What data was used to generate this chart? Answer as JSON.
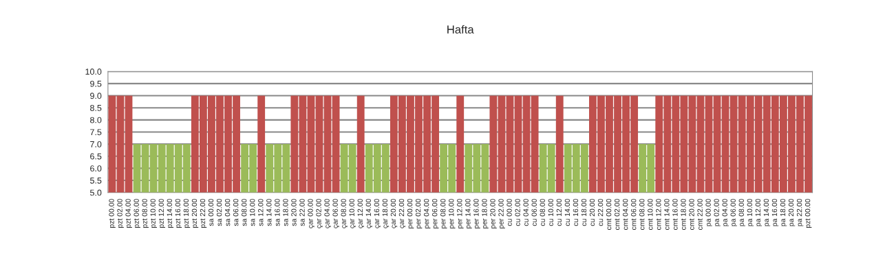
{
  "chart_data": {
    "type": "bar",
    "title": "Hafta",
    "categories": [
      "pzt 00.00",
      "pzt 02.00",
      "pzt 04.00",
      "pzt 06.00",
      "pzt 08.00",
      "pzt 10.00",
      "pzt 12.00",
      "pzt 14.00",
      "pzt 16.00",
      "pzt 18.00",
      "pzt 20.00",
      "pzt 22.00",
      "sa 00.00",
      "sa 02.00",
      "sa 04.00",
      "sa 06.00",
      "sa 08.00",
      "sa 10.00",
      "sa 12.00",
      "sa 14.00",
      "sa 16.00",
      "sa 18.00",
      "sa 20.00",
      "sa 22.00",
      "çar 00.00",
      "çar 02.00",
      "çar 04.00",
      "çar 06.00",
      "çar 08.00",
      "çar 10.00",
      "çar 12.00",
      "çar 14.00",
      "çar 16.00",
      "çar 18.00",
      "çar 20.00",
      "çar 22.00",
      "per 00.00",
      "per 02.00",
      "per 04.00",
      "per 06.00",
      "per 08.00",
      "per 10.00",
      "per 12.00",
      "per 14.00",
      "per 16.00",
      "per 18.00",
      "per 20.00",
      "per 22.00",
      "cu 00.00",
      "cu 02.00",
      "cu 04.00",
      "cu 06.00",
      "cu 08.00",
      "cu 10.00",
      "cu 12.00",
      "cu 14.00",
      "cu 16.00",
      "cu 18.00",
      "cu 20.00",
      "cu 22.00",
      "cmt 00.00",
      "cmt 02.00",
      "cmt 04.00",
      "cmt 06.00",
      "cmt 08.00",
      "cmt 10.00",
      "cmt 12.00",
      "cmt 14.00",
      "cmt 16.00",
      "cmt 18.00",
      "cmt 20.00",
      "cmt 22.00",
      "pa 00.00",
      "pa 02.00",
      "pa 04.00",
      "pa 06.00",
      "pa 08.00",
      "pa 10.00",
      "pa 12.00",
      "pa 14.00",
      "pa 16.00",
      "pa 18.00",
      "pa 20.00",
      "pa 22.00",
      "pzt 00.00"
    ],
    "series": [
      {
        "color": "#c0504d",
        "values": [
          9,
          9,
          9,
          null,
          null,
          null,
          null,
          null,
          null,
          null,
          9,
          9,
          9,
          9,
          9,
          9,
          null,
          null,
          9,
          null,
          null,
          null,
          9,
          9,
          9,
          9,
          9,
          9,
          null,
          null,
          9,
          null,
          null,
          null,
          9,
          9,
          9,
          9,
          9,
          9,
          null,
          null,
          9,
          null,
          null,
          null,
          9,
          9,
          9,
          9,
          9,
          9,
          null,
          null,
          9,
          null,
          null,
          null,
          9,
          9,
          9,
          9,
          9,
          9,
          null,
          null,
          9,
          9,
          9,
          9,
          9,
          9,
          9,
          9,
          9,
          9,
          9,
          9,
          9,
          9,
          9,
          9,
          9,
          9,
          9
        ]
      },
      {
        "color": "#9bbb59",
        "values": [
          null,
          null,
          null,
          7,
          7,
          7,
          7,
          7,
          7,
          7,
          null,
          null,
          null,
          null,
          null,
          null,
          7,
          7,
          null,
          7,
          7,
          7,
          null,
          null,
          null,
          null,
          null,
          null,
          7,
          7,
          null,
          7,
          7,
          7,
          null,
          null,
          null,
          null,
          null,
          null,
          7,
          7,
          null,
          7,
          7,
          7,
          null,
          null,
          null,
          null,
          null,
          null,
          7,
          7,
          null,
          7,
          7,
          7,
          null,
          null,
          null,
          null,
          null,
          null,
          7,
          7,
          null,
          null,
          null,
          null,
          null,
          null,
          null,
          null,
          null,
          null,
          null,
          null,
          null,
          null,
          null,
          null,
          null,
          null,
          null
        ]
      }
    ],
    "ylim": [
      5,
      10
    ],
    "yticks": [
      {
        "value": 5,
        "label": "5.0"
      },
      {
        "value": 5.5,
        "label": "5.5"
      },
      {
        "value": 6,
        "label": "6.0"
      },
      {
        "value": 6.5,
        "label": "6.5"
      },
      {
        "value": 7,
        "label": "7.0"
      },
      {
        "value": 7.5,
        "label": "7.5"
      },
      {
        "value": 8,
        "label": "8.0"
      },
      {
        "value": 8.5,
        "label": "8.5"
      },
      {
        "value": 9,
        "label": "9.0"
      },
      {
        "value": 9.5,
        "label": "9.5"
      },
      {
        "value": 10,
        "label": "10.0"
      }
    ],
    "grid": "y"
  }
}
